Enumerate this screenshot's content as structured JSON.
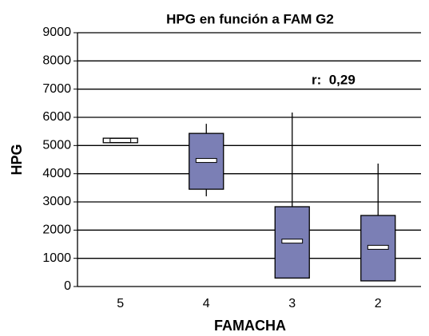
{
  "chart_data": {
    "type": "box",
    "title": "HPG en función a FAM G2",
    "x_label": "FAMACHA",
    "y_label": "HPG",
    "annotation": "r:  0,29",
    "categories": [
      "5",
      "4",
      "3",
      "2"
    ],
    "box_colors": [
      "#ffffff",
      "#7b7fb5",
      "#7b7fb5",
      "#7b7fb5"
    ],
    "min": [
      5100,
      3200,
      300,
      200
    ],
    "q1": [
      5100,
      3450,
      300,
      200
    ],
    "median": [
      5180,
      4470,
      1610,
      1390
    ],
    "q3": [
      5260,
      5430,
      2830,
      2520
    ],
    "max": [
      5260,
      5770,
      6170,
      4360
    ],
    "ylim": [
      0,
      9000
    ],
    "yticks": [
      0,
      1000,
      2000,
      3000,
      4000,
      5000,
      6000,
      7000,
      8000,
      9000
    ],
    "grid": true
  }
}
